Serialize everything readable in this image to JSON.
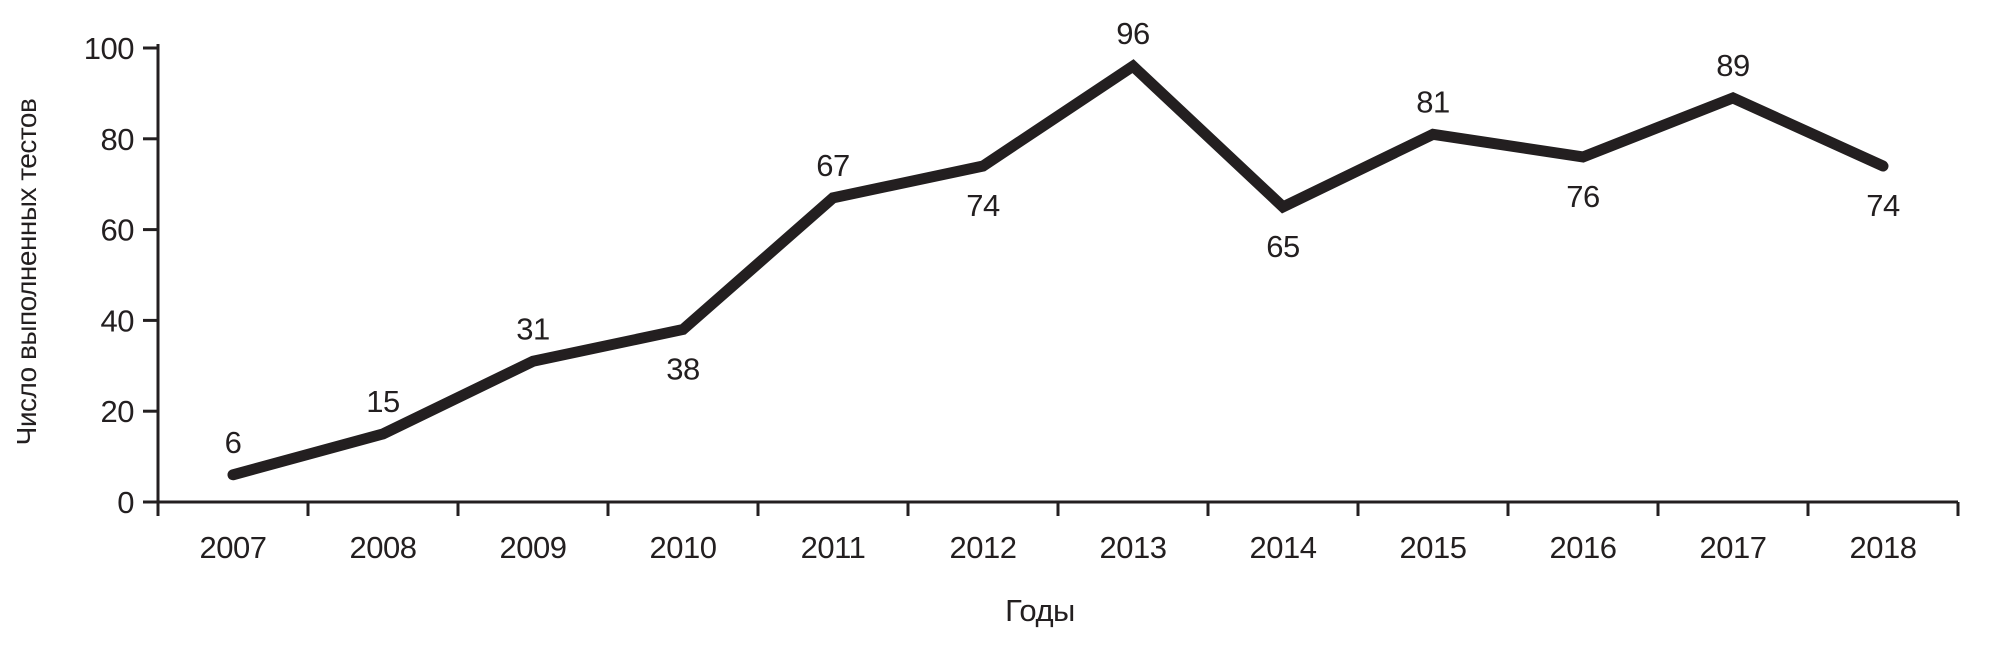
{
  "page": {
    "background": "#ffffff"
  },
  "chart_data": {
    "type": "line",
    "title": "",
    "categories": [
      "2007",
      "2008",
      "2009",
      "2010",
      "2011",
      "2012",
      "2013",
      "2014",
      "2015",
      "2016",
      "2017",
      "2018"
    ],
    "values": [
      6,
      15,
      31,
      38,
      67,
      74,
      96,
      65,
      81,
      76,
      89,
      74
    ],
    "label_positions": [
      "above",
      "above",
      "above",
      "below",
      "above",
      "below",
      "above",
      "below",
      "above",
      "below",
      "above",
      "below"
    ],
    "xlabel": "Годы",
    "ylabel": "Число выполненных тестов",
    "yticks": [
      0,
      20,
      40,
      60,
      80,
      100
    ],
    "ylim": [
      0,
      100
    ],
    "grid": false,
    "legend": "none",
    "line_color": "#231f20",
    "axis_color": "#231f20",
    "text_color": "#231f20",
    "line_width": 11
  }
}
